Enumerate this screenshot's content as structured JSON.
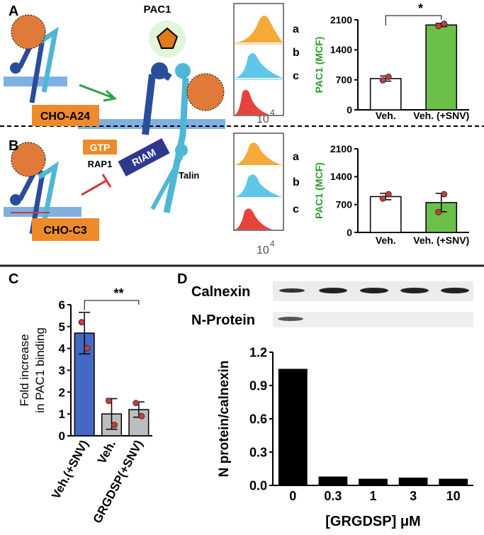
{
  "chart_data": [
    {
      "type": "bar",
      "ylabel": "PAC1 (MCF)",
      "ylabel_color": "#2e9a2e",
      "categories": [
        "Veh.",
        "Veh. (+SNV)"
      ],
      "values": [
        730,
        1980
      ],
      "colors": [
        "#ffffff",
        "#6cc04a"
      ],
      "errors": [
        60,
        40
      ],
      "points": [
        [
          690,
          770
        ],
        [
          1955,
          2010
        ]
      ],
      "ylim": [
        0,
        2100
      ],
      "yticks": [
        0,
        700,
        1400,
        2100
      ],
      "annotation": "*"
    },
    {
      "type": "bar",
      "ylabel": "PAC1 (MCF)",
      "ylabel_color": "#2e9a2e",
      "categories": [
        "Veh.",
        "Veh. (+SNV)"
      ],
      "values": [
        900,
        750
      ],
      "colors": [
        "#ffffff",
        "#6cc04a"
      ],
      "errors": [
        80,
        230
      ],
      "points": [
        [
          850,
          960
        ],
        [
          510,
          960
        ]
      ],
      "ylim": [
        0,
        2100
      ],
      "yticks": [
        0,
        700,
        1400,
        2100
      ]
    },
    {
      "type": "bar",
      "ylabel": [
        "Fold increase",
        "in PAC1 binding"
      ],
      "ylabel_color": "#000000",
      "categories": [
        "Veh.(+SNV)",
        "Veh.",
        "GRGDSP(+SNV)"
      ],
      "values": [
        4.7,
        1.0,
        1.2
      ],
      "colors": [
        "#4469c4",
        "#bdbdbd",
        "#bdbdbd"
      ],
      "errors": [
        0.95,
        0.7,
        0.35
      ],
      "points": [
        [
          5.2,
          4.0
        ],
        [
          1.6,
          0.5
        ],
        [
          1.5,
          0.9
        ]
      ],
      "ylim": [
        0,
        6
      ],
      "yticks": [
        0,
        1,
        2,
        3,
        4,
        5,
        6
      ],
      "annotation": "**"
    },
    {
      "type": "bar",
      "ylabel": "N protein/calnexin",
      "ylabel_color": "#000000",
      "xlabel": "[GRGDSP] μM",
      "categories": [
        "0",
        "0.3",
        "1",
        "3",
        "10"
      ],
      "values": [
        1.05,
        0.08,
        0.06,
        0.07,
        0.06
      ],
      "colors": [
        "#000000",
        "#000000",
        "#000000",
        "#000000",
        "#000000"
      ],
      "ylim": [
        0,
        1.2
      ],
      "yticks": [
        {
          "value": 0,
          "label": "0.0"
        },
        0.3,
        0.6,
        0.9,
        1.2
      ]
    }
  ],
  "diagram": {
    "panels": [
      "A",
      "B",
      "C",
      "D"
    ],
    "pac1": "PAC1",
    "cell_a": "CHO-A24",
    "cell_b": "CHO-C3",
    "gtp": "GTP",
    "rap1": "RAP1",
    "riam": "RIAM",
    "talin": "Talin",
    "flow_labels": [
      "a",
      "b",
      "c"
    ],
    "flow_axis": "10",
    "flow_axis_exp": "4",
    "blots": [
      "Calnexin",
      "N-Protein"
    ]
  }
}
